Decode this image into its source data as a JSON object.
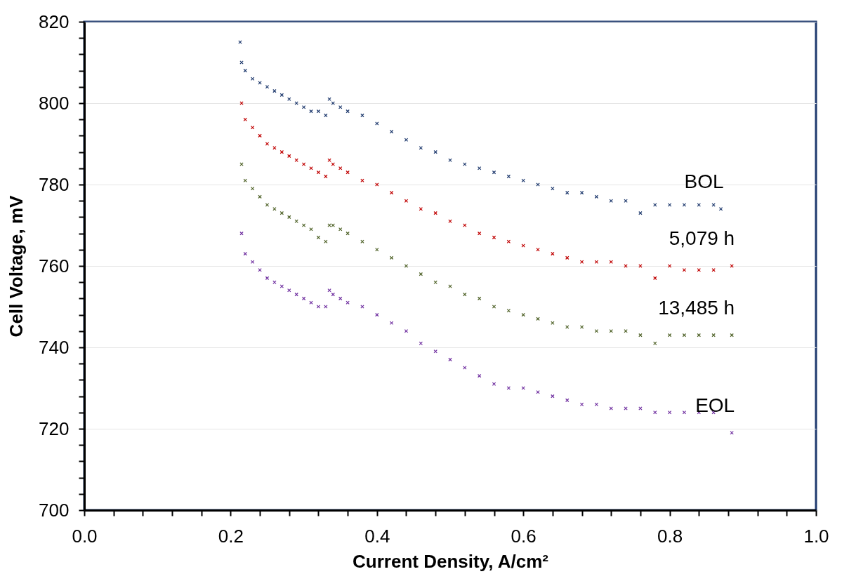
{
  "chart_data": {
    "type": "scatter",
    "xlabel": "Current Density, A/cm²",
    "ylabel": "Cell Voltage, mV",
    "xlim": [
      0,
      1
    ],
    "ylim": [
      700,
      820
    ],
    "xticks": [
      {
        "value": 0,
        "label": "0.0"
      },
      {
        "value": 0.04,
        "label": null
      },
      {
        "value": 0.08,
        "label": null
      },
      {
        "value": 0.12,
        "label": null
      },
      {
        "value": 0.16,
        "label": null
      },
      {
        "value": 0.2,
        "label": "0.2"
      },
      {
        "value": 0.24,
        "label": null
      },
      {
        "value": 0.28,
        "label": null
      },
      {
        "value": 0.32,
        "label": null
      },
      {
        "value": 0.36,
        "label": null
      },
      {
        "value": 0.4,
        "label": "0.4"
      },
      {
        "value": 0.44,
        "label": null
      },
      {
        "value": 0.48,
        "label": null
      },
      {
        "value": 0.52,
        "label": null
      },
      {
        "value": 0.56,
        "label": null
      },
      {
        "value": 0.6,
        "label": "0.6"
      },
      {
        "value": 0.64,
        "label": null
      },
      {
        "value": 0.68,
        "label": null
      },
      {
        "value": 0.72,
        "label": null
      },
      {
        "value": 0.76,
        "label": null
      },
      {
        "value": 0.8,
        "label": "0.8"
      },
      {
        "value": 0.84,
        "label": null
      },
      {
        "value": 0.88,
        "label": null
      },
      {
        "value": 0.92,
        "label": null
      },
      {
        "value": 0.96,
        "label": null
      },
      {
        "value": 1,
        "label": "1.0"
      }
    ],
    "yticks": [
      700,
      {
        "value": 704,
        "label": null
      },
      {
        "value": 708,
        "label": null
      },
      {
        "value": 712,
        "label": null
      },
      {
        "value": 716,
        "label": null
      },
      720,
      {
        "value": 724,
        "label": null
      },
      {
        "value": 728,
        "label": null
      },
      {
        "value": 732,
        "label": null
      },
      {
        "value": 736,
        "label": null
      },
      740,
      {
        "value": 744,
        "label": null
      },
      {
        "value": 748,
        "label": null
      },
      {
        "value": 752,
        "label": null
      },
      {
        "value": 756,
        "label": null
      },
      760,
      {
        "value": 764,
        "label": null
      },
      {
        "value": 768,
        "label": null
      },
      {
        "value": 772,
        "label": null
      },
      {
        "value": 776,
        "label": null
      },
      780,
      {
        "value": 784,
        "label": null
      },
      {
        "value": 788,
        "label": null
      },
      {
        "value": 792,
        "label": null
      },
      {
        "value": 796,
        "label": null
      },
      800,
      {
        "value": 804,
        "label": null
      },
      {
        "value": 808,
        "label": null
      },
      {
        "value": 812,
        "label": null
      },
      {
        "value": 816,
        "label": null
      },
      820
    ],
    "grid": "y",
    "marker": "cross",
    "legend": false,
    "series": [
      {
        "name": "BOL",
        "color": "#1f3a6e",
        "x": [
          0.213,
          0.215,
          0.22,
          0.23,
          0.24,
          0.25,
          0.26,
          0.27,
          0.28,
          0.29,
          0.3,
          0.31,
          0.32,
          0.33,
          0.335,
          0.34,
          0.35,
          0.36,
          0.38,
          0.4,
          0.42,
          0.44,
          0.46,
          0.48,
          0.5,
          0.52,
          0.54,
          0.56,
          0.58,
          0.6,
          0.62,
          0.64,
          0.66,
          0.68,
          0.7,
          0.72,
          0.74,
          0.76,
          0.78,
          0.8,
          0.82,
          0.84,
          0.86,
          0.87
        ],
        "values": [
          815,
          810,
          808,
          806,
          805,
          804,
          803,
          802,
          801,
          800,
          799,
          798,
          798,
          797,
          801,
          800,
          799,
          798,
          797,
          795,
          793,
          791,
          789,
          788,
          786,
          785,
          784,
          783,
          782,
          781,
          780,
          779,
          778,
          778,
          777,
          776,
          776,
          773,
          775,
          775,
          775,
          775,
          775,
          774
        ]
      },
      {
        "name": "5,079 h",
        "color": "#c00000",
        "x": [
          0.215,
          0.22,
          0.23,
          0.24,
          0.25,
          0.26,
          0.27,
          0.28,
          0.29,
          0.3,
          0.31,
          0.32,
          0.33,
          0.335,
          0.34,
          0.35,
          0.36,
          0.38,
          0.4,
          0.42,
          0.44,
          0.46,
          0.48,
          0.5,
          0.52,
          0.54,
          0.56,
          0.58,
          0.6,
          0.62,
          0.64,
          0.66,
          0.68,
          0.7,
          0.72,
          0.74,
          0.76,
          0.78,
          0.8,
          0.82,
          0.84,
          0.86,
          0.885
        ],
        "values": [
          800,
          796,
          794,
          792,
          790,
          789,
          788,
          787,
          786,
          785,
          784,
          783,
          782,
          786,
          785,
          784,
          783,
          781,
          780,
          778,
          776,
          774,
          773,
          771,
          770,
          768,
          767,
          766,
          765,
          764,
          763,
          762,
          761,
          761,
          761,
          760,
          760,
          757,
          760,
          759,
          759,
          759,
          760
        ]
      },
      {
        "name": "13,485 h",
        "color": "#4f6228",
        "x": [
          0.215,
          0.22,
          0.23,
          0.24,
          0.25,
          0.26,
          0.27,
          0.28,
          0.29,
          0.3,
          0.31,
          0.32,
          0.33,
          0.335,
          0.34,
          0.35,
          0.36,
          0.38,
          0.4,
          0.42,
          0.44,
          0.46,
          0.48,
          0.5,
          0.52,
          0.54,
          0.56,
          0.58,
          0.6,
          0.62,
          0.64,
          0.66,
          0.68,
          0.7,
          0.72,
          0.74,
          0.76,
          0.78,
          0.8,
          0.82,
          0.84,
          0.86,
          0.885
        ],
        "values": [
          785,
          781,
          779,
          777,
          775,
          774,
          773,
          772,
          771,
          770,
          769,
          767,
          766,
          770,
          770,
          769,
          768,
          766,
          764,
          762,
          760,
          758,
          756,
          755,
          753,
          752,
          750,
          749,
          748,
          747,
          746,
          745,
          745,
          744,
          744,
          744,
          743,
          741,
          743,
          743,
          743,
          743,
          743
        ]
      },
      {
        "name": "EOL",
        "color": "#7030a0",
        "x": [
          0.215,
          0.22,
          0.23,
          0.24,
          0.25,
          0.26,
          0.27,
          0.28,
          0.29,
          0.3,
          0.31,
          0.32,
          0.33,
          0.335,
          0.34,
          0.35,
          0.36,
          0.38,
          0.4,
          0.42,
          0.44,
          0.46,
          0.48,
          0.5,
          0.52,
          0.54,
          0.56,
          0.58,
          0.6,
          0.62,
          0.64,
          0.66,
          0.68,
          0.7,
          0.72,
          0.74,
          0.76,
          0.78,
          0.8,
          0.82,
          0.84,
          0.86,
          0.885
        ],
        "values": [
          768,
          763,
          761,
          759,
          757,
          756,
          755,
          754,
          753,
          752,
          751,
          750,
          750,
          754,
          753,
          752,
          751,
          750,
          748,
          746,
          744,
          741,
          739,
          737,
          735,
          733,
          731,
          730,
          730,
          729,
          728,
          727,
          726,
          726,
          725,
          725,
          725,
          724,
          724,
          724,
          724,
          724,
          719
        ]
      }
    ]
  }
}
